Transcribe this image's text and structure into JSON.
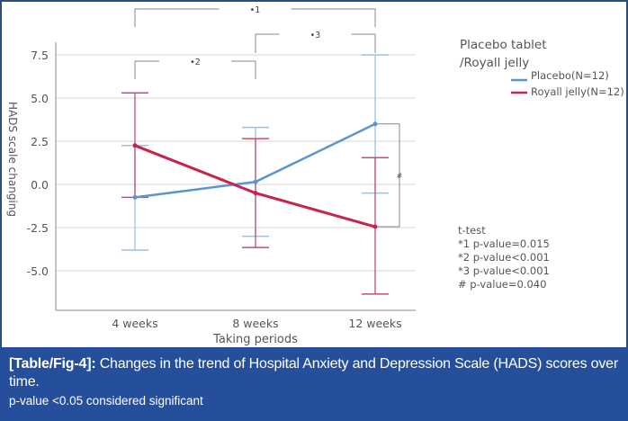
{
  "chart_data": {
    "type": "line",
    "title": "",
    "xlabel": "Taking periods",
    "ylabel": "HADS scale changing",
    "categories": [
      "4 weeks",
      "8 weeks",
      "12 weeks"
    ],
    "ylim": [
      -7.0,
      8.5
    ],
    "yticks": [
      7.5,
      5.0,
      2.5,
      0.0,
      -2.5,
      -5.0
    ],
    "ytick_labels": [
      "7.5",
      "5.0",
      "2.5",
      "0.0",
      "-2.5",
      "-5.0"
    ],
    "grid": true,
    "series": [
      {
        "name": "Placebo(N=12)",
        "color": "#5b95d0",
        "values": [
          -0.75,
          0.15,
          3.5
        ],
        "error_low": [
          -3.8,
          -3.0,
          -0.5
        ],
        "error_high": [
          2.25,
          3.3,
          7.5
        ]
      },
      {
        "name": "Royall jelly(N=12)",
        "color": "#c8234a",
        "values": [
          2.25,
          -0.5,
          -2.45
        ],
        "error_low": [
          -0.75,
          -3.65,
          -6.35
        ],
        "error_high": [
          5.3,
          2.65,
          1.55
        ]
      }
    ],
    "legend": {
      "title_line1": "Placebo tablet",
      "title_line2": "/Royall jelly",
      "placement": "right"
    },
    "significance_brackets": [
      {
        "label": "*1",
        "from": "4 weeks",
        "to": "12 weeks"
      },
      {
        "label": "*3",
        "from": "8 weeks",
        "to": "12 weeks"
      },
      {
        "label": "*2",
        "from": "4 weeks",
        "to": "8 weeks"
      },
      {
        "label": "#",
        "at": "12 weeks",
        "between": "Placebo vs Royall jelly"
      }
    ],
    "annotations": {
      "test_title": "t-test",
      "lines": [
        "*1 p-value=0.015",
        "*2 p-value<0.001",
        "*3 p-value<0.001",
        "# p-value=0.040"
      ]
    }
  },
  "caption": {
    "label": "[Table/Fig-4]:",
    "text": "Changes in the trend of Hospital Anxiety and Depression Scale (HADS) scores over time.",
    "note": "p-value <0.05 considered significant"
  }
}
